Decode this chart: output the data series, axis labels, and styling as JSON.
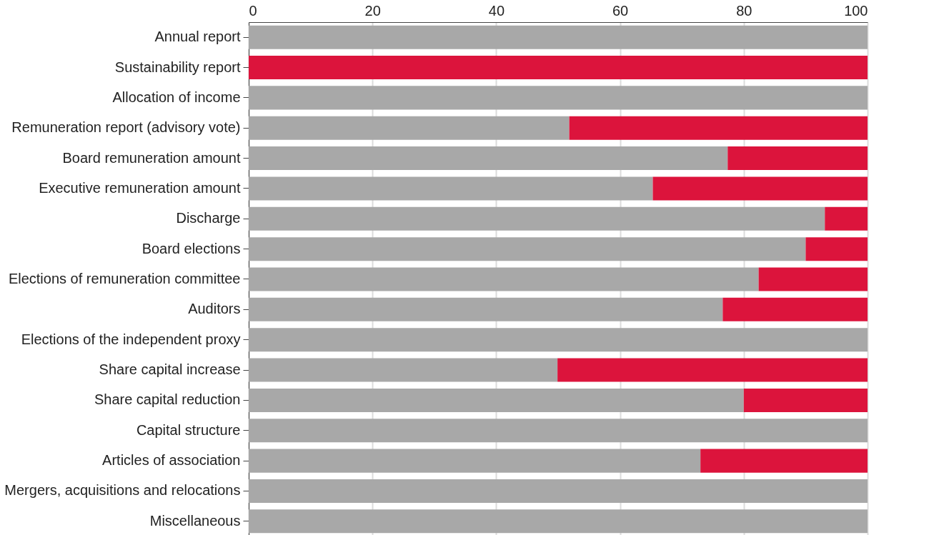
{
  "chart_data": {
    "type": "bar",
    "orientation": "horizontal",
    "stacked": true,
    "grid": "x",
    "legend": false,
    "categories": [
      "Annual report",
      "Sustainability report",
      "Allocation of income",
      "Remuneration report (advisory vote)",
      "Board remuneration amount",
      "Executive remuneration amount",
      "Discharge",
      "Board elections",
      "Elections of remuneration committee",
      "Auditors",
      "Elections of the independent proxy",
      "Share capital increase",
      "Share capital reduction",
      "Capital structure",
      "Articles of association",
      "Mergers, acquisitions and relocations",
      "Miscellaneous"
    ],
    "series": [
      {
        "color": "#a8a8a8",
        "values": [
          100,
          0,
          100,
          51.8,
          77.4,
          65.3,
          93.1,
          90.0,
          82.4,
          76.6,
          100,
          49.9,
          80,
          100,
          73.0,
          100,
          100
        ]
      },
      {
        "color": "#dc143c",
        "values": [
          0,
          100,
          0,
          48.2,
          22.6,
          34.7,
          6.9,
          10.0,
          17.6,
          23.4,
          0,
          50.1,
          20,
          0,
          27.0,
          0,
          0
        ]
      }
    ],
    "xlim": [
      0,
      100
    ],
    "xticks": [
      0,
      20,
      40,
      60,
      80,
      100
    ]
  }
}
